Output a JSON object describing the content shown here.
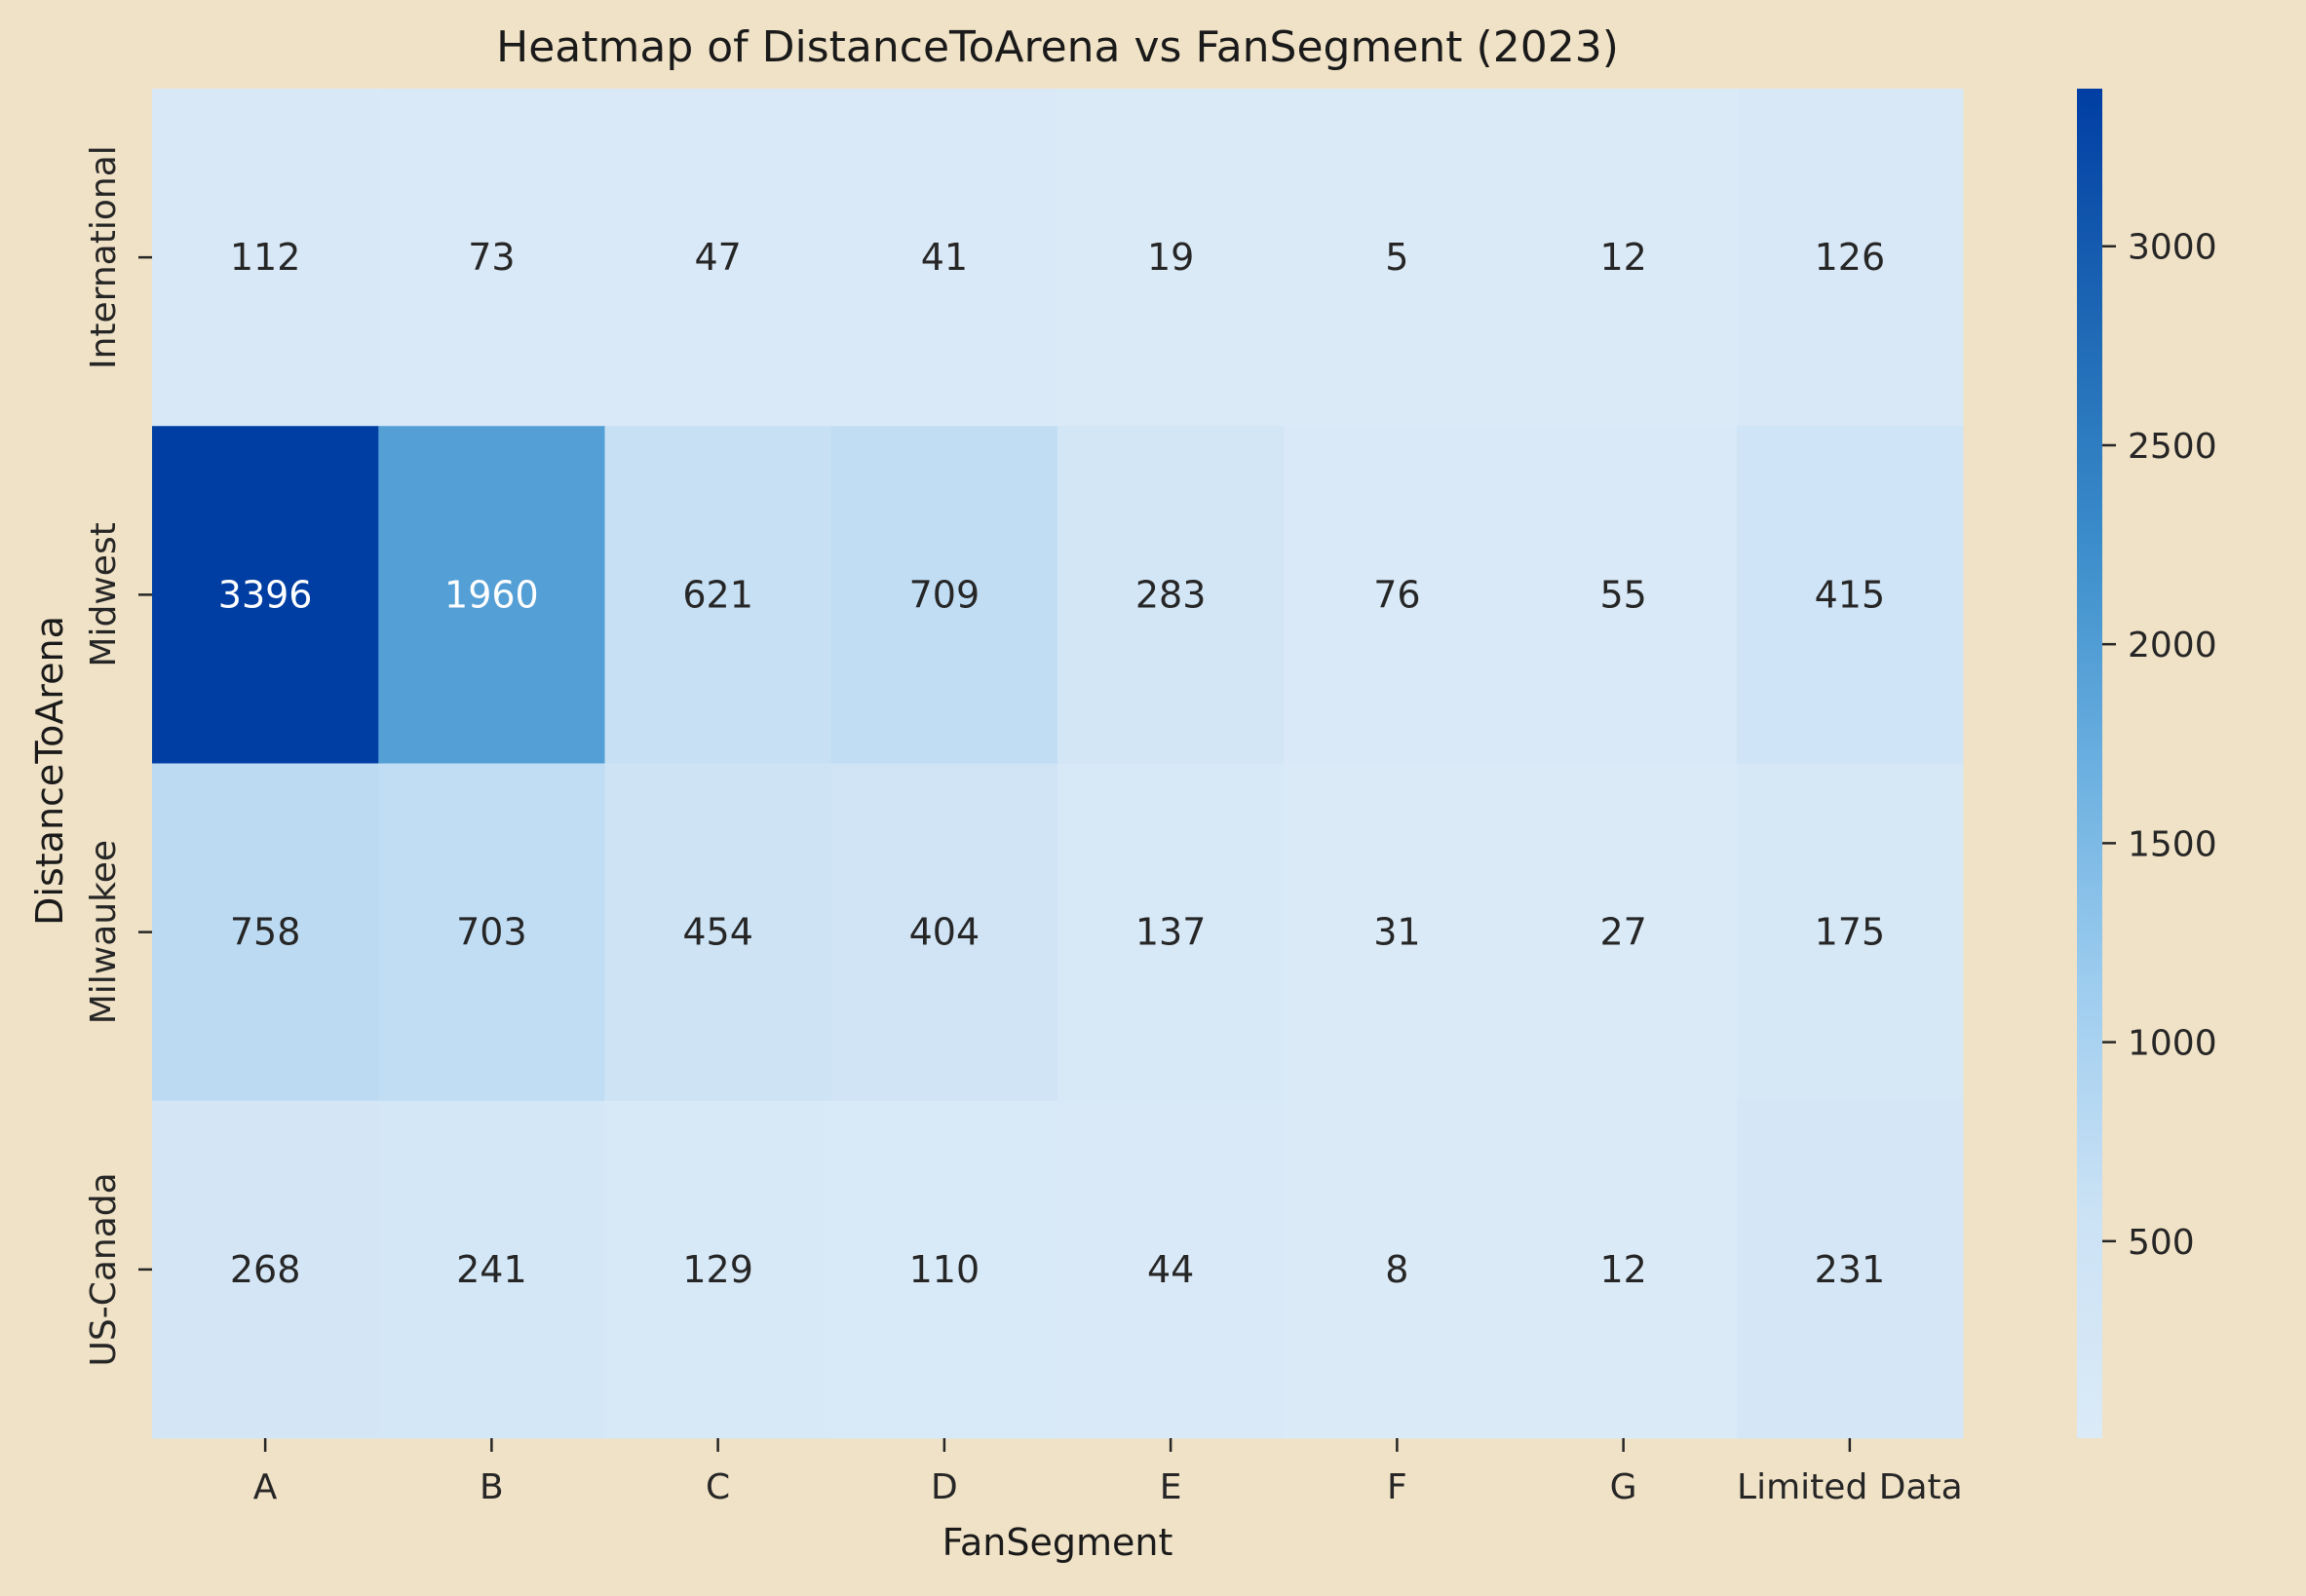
{
  "chart_data": {
    "type": "heatmap",
    "title": "Heatmap of DistanceToArena vs FanSegment (2023)",
    "xlabel": "FanSegment",
    "ylabel": "DistanceToArena",
    "x_categories": [
      "A",
      "B",
      "C",
      "D",
      "E",
      "F",
      "G",
      "Limited Data"
    ],
    "y_categories": [
      "International",
      "Midwest",
      "Milwaukee",
      "US-Canada"
    ],
    "values": [
      [
        112,
        73,
        47,
        41,
        19,
        5,
        12,
        126
      ],
      [
        3396,
        1960,
        621,
        709,
        283,
        76,
        55,
        415
      ],
      [
        758,
        703,
        454,
        404,
        137,
        31,
        27,
        175
      ],
      [
        268,
        241,
        129,
        110,
        44,
        8,
        12,
        231
      ]
    ],
    "color_range": [
      5,
      3396
    ],
    "colormap": [
      "#dbeaf7",
      "#cbe2f5",
      "#9ecdef",
      "#6aafe0",
      "#3a8cca",
      "#1d66b4",
      "#003ea3"
    ],
    "colorbar_ticks": [
      500,
      1000,
      1500,
      2000,
      2500,
      3000
    ],
    "background_color": "#f0e2c6",
    "grid": false,
    "legend": "colorbar-right"
  }
}
